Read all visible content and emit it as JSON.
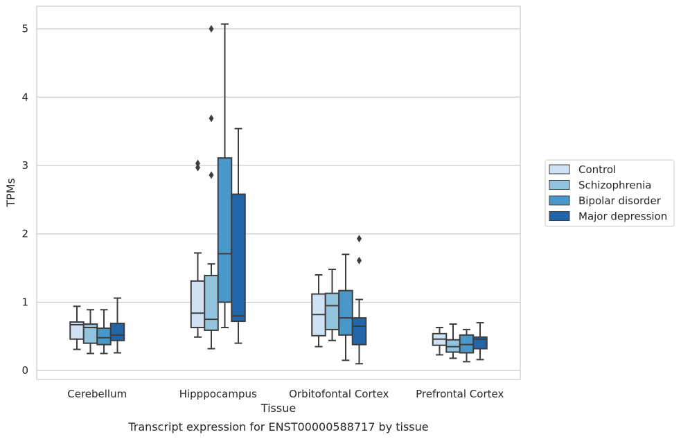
{
  "chart_data": {
    "type": "box",
    "xlabel": "Tissue",
    "ylabel": "TPMs",
    "caption": "Transcript expression for ENST00000588717 by tissue",
    "ylim": [
      -0.13,
      5.33
    ],
    "yticks": [
      0,
      1,
      2,
      3,
      4,
      5
    ],
    "grid": "horizontal",
    "legend_position": "right",
    "categories": [
      "Cerebellum",
      "Hipppocampus",
      "Orbitofontal Cortex",
      "Prefrontal Cortex"
    ],
    "series": [
      {
        "name": "Control",
        "color": "#cfe1f2",
        "boxes": [
          {
            "whisker_low": 0.31,
            "q1": 0.46,
            "median": 0.67,
            "q3": 0.71,
            "whisker_high": 0.94,
            "outliers": []
          },
          {
            "whisker_low": 0.49,
            "q1": 0.63,
            "median": 0.84,
            "q3": 1.31,
            "whisker_high": 1.72,
            "outliers": [
              2.97,
              3.03
            ]
          },
          {
            "whisker_low": 0.35,
            "q1": 0.51,
            "median": 0.82,
            "q3": 1.12,
            "whisker_high": 1.4,
            "outliers": []
          },
          {
            "whisker_low": 0.23,
            "q1": 0.37,
            "median": 0.46,
            "q3": 0.54,
            "whisker_high": 0.63,
            "outliers": []
          }
        ]
      },
      {
        "name": "Schizophrenia",
        "color": "#93c4de",
        "boxes": [
          {
            "whisker_low": 0.25,
            "q1": 0.4,
            "median": 0.63,
            "q3": 0.68,
            "whisker_high": 0.89,
            "outliers": []
          },
          {
            "whisker_low": 0.32,
            "q1": 0.59,
            "median": 0.75,
            "q3": 1.39,
            "whisker_high": 1.56,
            "outliers": [
              2.86,
              3.69,
              5.0
            ]
          },
          {
            "whisker_low": 0.44,
            "q1": 0.6,
            "median": 0.95,
            "q3": 1.13,
            "whisker_high": 1.48,
            "outliers": []
          },
          {
            "whisker_low": 0.18,
            "q1": 0.27,
            "median": 0.35,
            "q3": 0.45,
            "whisker_high": 0.68,
            "outliers": []
          }
        ]
      },
      {
        "name": "Bipolar disorder",
        "color": "#4a98c9",
        "boxes": [
          {
            "whisker_low": 0.25,
            "q1": 0.38,
            "median": 0.48,
            "q3": 0.62,
            "whisker_high": 0.89,
            "outliers": []
          },
          {
            "whisker_low": 0.63,
            "q1": 1.0,
            "median": 1.71,
            "q3": 3.11,
            "whisker_high": 5.07,
            "outliers": []
          },
          {
            "whisker_low": 0.15,
            "q1": 0.52,
            "median": 0.77,
            "q3": 1.17,
            "whisker_high": 1.7,
            "outliers": []
          },
          {
            "whisker_low": 0.13,
            "q1": 0.26,
            "median": 0.38,
            "q3": 0.52,
            "whisker_high": 0.6,
            "outliers": []
          }
        ]
      },
      {
        "name": "Major depression",
        "color": "#2265a8",
        "boxes": [
          {
            "whisker_low": 0.26,
            "q1": 0.44,
            "median": 0.52,
            "q3": 0.69,
            "whisker_high": 1.06,
            "outliers": []
          },
          {
            "whisker_low": 0.4,
            "q1": 0.72,
            "median": 0.8,
            "q3": 2.58,
            "whisker_high": 3.54,
            "outliers": []
          },
          {
            "whisker_low": 0.1,
            "q1": 0.38,
            "median": 0.65,
            "q3": 0.77,
            "whisker_high": 1.04,
            "outliers": [
              1.61,
              1.93
            ]
          },
          {
            "whisker_low": 0.16,
            "q1": 0.32,
            "median": 0.46,
            "q3": 0.49,
            "whisker_high": 0.7,
            "outliers": []
          }
        ]
      }
    ]
  }
}
